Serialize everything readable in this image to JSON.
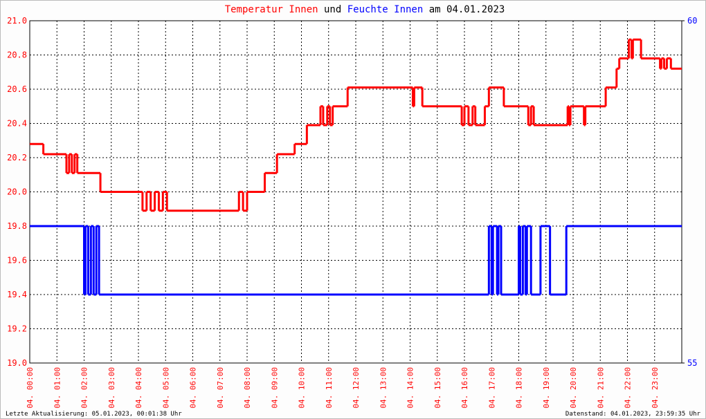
{
  "chart_data": {
    "type": "step-line",
    "title_connector": "und",
    "title_suffix": "am 04.01.2023",
    "footer_left": "Letzte Aktualisierung: 05.01.2023, 00:01:38 Uhr",
    "footer_right": "Datenstand: 04.01.2023, 23:59:35 Uhr",
    "grid": true,
    "xlim": [
      0,
      24
    ],
    "xticks": [
      {
        "value": 0,
        "label": "04. 00:00"
      },
      {
        "value": 1,
        "label": "04. 01:00"
      },
      {
        "value": 2,
        "label": "04. 02:00"
      },
      {
        "value": 3,
        "label": "04. 03:00"
      },
      {
        "value": 4,
        "label": "04. 04:00"
      },
      {
        "value": 5,
        "label": "04. 05:00"
      },
      {
        "value": 6,
        "label": "04. 06:00"
      },
      {
        "value": 7,
        "label": "04. 07:00"
      },
      {
        "value": 8,
        "label": "04. 08:00"
      },
      {
        "value": 9,
        "label": "04. 09:00"
      },
      {
        "value": 10,
        "label": "04. 10:00"
      },
      {
        "value": 11,
        "label": "04. 11:00"
      },
      {
        "value": 12,
        "label": "04. 12:00"
      },
      {
        "value": 13,
        "label": "04. 13:00"
      },
      {
        "value": 14,
        "label": "04. 14:00"
      },
      {
        "value": 15,
        "label": "04. 15:00"
      },
      {
        "value": 16,
        "label": "04. 16:00"
      },
      {
        "value": 17,
        "label": "04. 17:00"
      },
      {
        "value": 18,
        "label": "04. 18:00"
      },
      {
        "value": 19,
        "label": "04. 19:00"
      },
      {
        "value": 20,
        "label": "04. 20:00"
      },
      {
        "value": 21,
        "label": "04. 21:00"
      },
      {
        "value": 22,
        "label": "04. 22:00"
      },
      {
        "value": 23,
        "label": "04. 23:00"
      }
    ],
    "ylim": [
      19.0,
      21.0
    ],
    "yticks": [
      {
        "value": 19.0,
        "label": "19.0"
      },
      19.2,
      19.4,
      19.6,
      19.8,
      {
        "value": 20.0,
        "label": "20.0"
      },
      20.2,
      20.4,
      20.6,
      20.8,
      {
        "value": 21.0,
        "label": "21.0"
      }
    ],
    "y2lim": [
      55,
      60
    ],
    "y2ticks": [
      55,
      60
    ],
    "series": [
      {
        "name": "Temperatur Innen",
        "color": "#ff0000",
        "x": [
          0,
          0.5,
          1.35,
          1.45,
          1.55,
          1.65,
          1.75,
          2.6,
          4.15,
          4.3,
          4.45,
          4.6,
          4.75,
          4.9,
          5.05,
          7.7,
          7.85,
          8.0,
          8.65,
          9.1,
          9.75,
          10.2,
          10.7,
          10.8,
          10.95,
          11.05,
          11.15,
          11.7,
          14.1,
          14.15,
          14.45,
          15.9,
          16.0,
          16.15,
          16.3,
          16.4,
          16.75,
          16.9,
          17.45,
          18.35,
          18.45,
          18.55,
          19.8,
          19.85,
          19.9,
          20.4,
          20.45,
          21.2,
          21.6,
          21.7,
          22.05,
          22.15,
          22.2,
          22.5,
          23.2,
          23.25,
          23.35,
          23.45,
          23.6
        ],
        "values": [
          20.28,
          20.22,
          20.11,
          20.22,
          20.11,
          20.22,
          20.11,
          20.0,
          19.89,
          20.0,
          19.89,
          20.0,
          19.89,
          20.0,
          19.89,
          20.0,
          19.89,
          20.0,
          20.11,
          20.22,
          20.28,
          20.39,
          20.5,
          20.39,
          20.5,
          20.39,
          20.5,
          20.61,
          20.5,
          20.61,
          20.5,
          20.39,
          20.5,
          20.39,
          20.5,
          20.39,
          20.5,
          20.61,
          20.5,
          20.39,
          20.5,
          20.39,
          20.5,
          20.39,
          20.5,
          20.39,
          20.5,
          20.61,
          20.72,
          20.78,
          20.89,
          20.78,
          20.89,
          20.78,
          20.72,
          20.78,
          20.72,
          20.78,
          20.72
        ]
      },
      {
        "name": "Feuchte Innen",
        "color": "#0000ff",
        "axis": "y2",
        "x": [
          0,
          2.0,
          2.05,
          2.15,
          2.25,
          2.35,
          2.45,
          2.55,
          16.9,
          17.0,
          17.05,
          17.2,
          17.25,
          17.35,
          18.0,
          18.05,
          18.15,
          18.25,
          18.3,
          18.45,
          18.8,
          19.15,
          19.75
        ],
        "values": [
          57,
          56,
          57,
          56,
          57,
          56,
          57,
          56,
          57,
          56,
          57,
          56,
          57,
          56,
          57,
          56,
          57,
          56,
          57,
          56,
          57,
          56,
          57
        ]
      }
    ]
  }
}
